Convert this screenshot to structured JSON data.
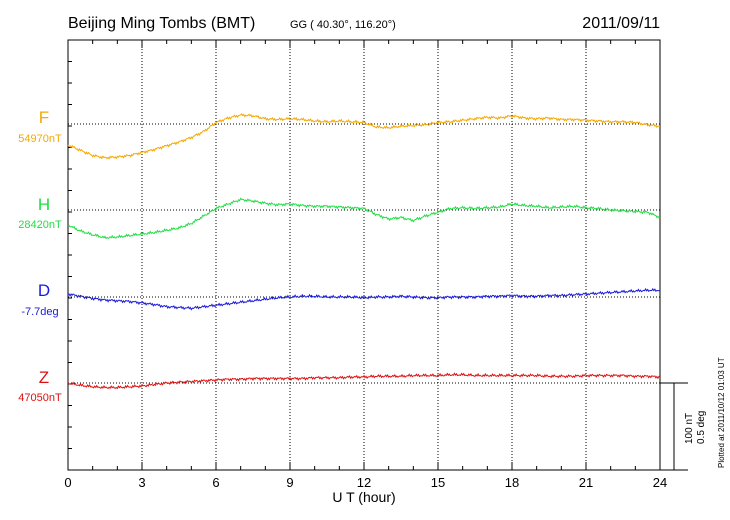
{
  "chart_data": {
    "type": "line",
    "title": "Beijing Ming Tombs (BMT)",
    "subtitle": "GG ( 40.30°, 116.20°)",
    "date": "2011/09/11",
    "xlabel": "U T (hour)",
    "xlim": [
      0,
      24
    ],
    "xticks": [
      "0",
      "3",
      "6",
      "9",
      "12",
      "15",
      "18",
      "21",
      "24"
    ],
    "scale_label_1": "100 nT",
    "scale_label_2": "0.5 deg",
    "plotted_note": "Plotted at 2011/10/12 01:03 UT",
    "grid": true,
    "series": [
      {
        "name": "F",
        "baseline_label": "54970nT",
        "color": "#f5a800",
        "x": [
          0,
          0.5,
          1,
          1.5,
          2,
          2.5,
          3,
          3.5,
          4,
          4.5,
          5,
          5.5,
          6,
          6.5,
          7,
          7.5,
          8,
          8.5,
          9,
          9.5,
          10,
          10.5,
          11,
          11.5,
          12,
          12.5,
          13,
          13.5,
          14,
          14.5,
          15,
          15.5,
          16,
          16.5,
          17,
          17.5,
          18,
          18.5,
          19,
          19.5,
          20,
          20.5,
          21,
          21.5,
          22,
          22.5,
          23,
          23.5,
          24
        ],
        "values": [
          -28,
          -35,
          -42,
          -45,
          -44,
          -42,
          -38,
          -34,
          -29,
          -24,
          -18,
          -10,
          2,
          8,
          12,
          11,
          7,
          6,
          7,
          6,
          4,
          3,
          4,
          3,
          2,
          -4,
          -5,
          -3,
          -2,
          -1,
          2,
          3,
          5,
          7,
          9,
          8,
          11,
          8,
          7,
          8,
          6,
          6,
          5,
          4,
          3,
          3,
          2,
          -1,
          -3
        ]
      },
      {
        "name": "H",
        "baseline_label": "28420nT",
        "color": "#22dd44",
        "x": [
          0,
          0.5,
          1,
          1.5,
          2,
          2.5,
          3,
          3.5,
          4,
          4.5,
          5,
          5.5,
          6,
          6.5,
          7,
          7.5,
          8,
          8.5,
          9,
          9.5,
          10,
          10.5,
          11,
          11.5,
          12,
          12.5,
          13,
          13.5,
          14,
          14.5,
          15,
          15.5,
          16,
          16.5,
          17,
          17.5,
          18,
          18.5,
          19,
          19.5,
          20,
          20.5,
          21,
          21.5,
          22,
          22.5,
          23,
          23.5,
          24
        ],
        "values": [
          -20,
          -28,
          -33,
          -37,
          -36,
          -34,
          -32,
          -30,
          -27,
          -24,
          -18,
          -8,
          2,
          8,
          14,
          12,
          9,
          7,
          8,
          6,
          5,
          5,
          4,
          3,
          2,
          -6,
          -12,
          -10,
          -14,
          -8,
          -3,
          2,
          3,
          2,
          3,
          4,
          8,
          6,
          5,
          3,
          4,
          5,
          3,
          2,
          0,
          -1,
          -2,
          -3,
          -10
        ]
      },
      {
        "name": "D",
        "baseline_label": "-7.7deg",
        "color": "#1a1add",
        "x": [
          0,
          0.5,
          1,
          1.5,
          2,
          2.5,
          3,
          3.5,
          4,
          4.5,
          5,
          5.5,
          6,
          6.5,
          7,
          7.5,
          8,
          8.5,
          9,
          9.5,
          10,
          10.5,
          11,
          11.5,
          12,
          12.5,
          13,
          13.5,
          14,
          14.5,
          15,
          15.5,
          16,
          16.5,
          17,
          17.5,
          18,
          18.5,
          19,
          19.5,
          20,
          20.5,
          21,
          21.5,
          22,
          22.5,
          23,
          23.5,
          24
        ],
        "values": [
          4,
          1,
          -2,
          -4,
          -5,
          -6,
          -8,
          -10,
          -13,
          -14,
          -15,
          -13,
          -11,
          -9,
          -7,
          -5,
          -3,
          -1,
          0,
          1,
          1,
          0,
          0,
          0,
          -1,
          0,
          0,
          1,
          0,
          -1,
          -1,
          0,
          0,
          0,
          1,
          1,
          2,
          1,
          1,
          2,
          2,
          3,
          4,
          5,
          6,
          7,
          8,
          9,
          9
        ]
      },
      {
        "name": "Z",
        "baseline_label": "47050nT",
        "color": "#dd1111",
        "x": [
          0,
          0.5,
          1,
          1.5,
          2,
          2.5,
          3,
          3.5,
          4,
          4.5,
          5,
          5.5,
          6,
          6.5,
          7,
          7.5,
          8,
          8.5,
          9,
          9.5,
          10,
          10.5,
          11,
          11.5,
          12,
          12.5,
          13,
          13.5,
          14,
          14.5,
          15,
          15.5,
          16,
          16.5,
          17,
          17.5,
          18,
          18.5,
          19,
          19.5,
          20,
          20.5,
          21,
          21.5,
          22,
          22.5,
          23,
          23.5,
          24
        ],
        "values": [
          0,
          -3,
          -5,
          -6,
          -6,
          -5,
          -4,
          -2,
          0,
          1,
          2,
          3,
          4,
          5,
          5,
          6,
          6,
          6,
          6,
          6,
          7,
          7,
          7,
          8,
          8,
          9,
          9,
          9,
          10,
          10,
          10,
          11,
          11,
          10,
          10,
          10,
          10,
          10,
          10,
          9,
          9,
          9,
          10,
          10,
          10,
          10,
          9,
          9,
          8
        ]
      }
    ]
  }
}
